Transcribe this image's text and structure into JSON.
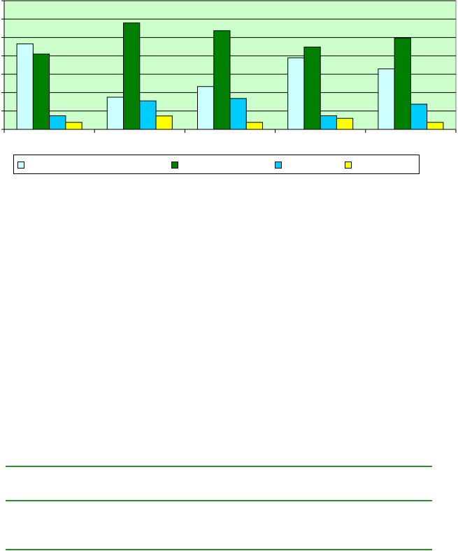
{
  "chart_data": {
    "type": "bar",
    "categories": [
      "",
      "",
      "",
      "",
      ""
    ],
    "series": [
      {
        "color": "#ccffff",
        "values": [
          46.5,
          17.5,
          23.3,
          38.9,
          32.9
        ]
      },
      {
        "color": "#008000",
        "values": [
          41.0,
          57.9,
          53.7,
          44.8,
          49.6
        ]
      },
      {
        "color": "#00ccff",
        "values": [
          7.4,
          15.5,
          16.8,
          7.4,
          13.7
        ]
      },
      {
        "color": "#ffff00",
        "values": [
          3.8,
          7.3,
          3.8,
          6.0,
          3.8
        ]
      }
    ],
    "ylim": [
      0,
      70
    ],
    "grid": true,
    "plot_background": "#ccffcc",
    "legend_position": "bottom",
    "title": "",
    "xlabel": "",
    "ylabel": ""
  },
  "legend": {
    "labels": [
      "",
      "",
      "",
      ""
    ]
  },
  "colors": {
    "rule": "#2e8b2e",
    "gridline": "#000000"
  }
}
